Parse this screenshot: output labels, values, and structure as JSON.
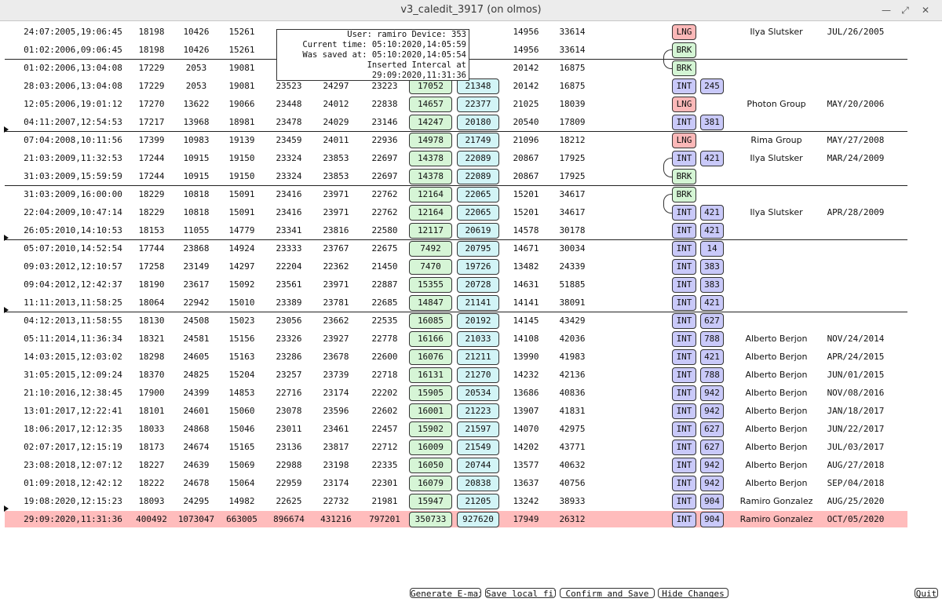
{
  "window": {
    "title": "v3_caledit_3917 (on olmos)"
  },
  "tooltip": {
    "user_line": "User: ramiro Device: 353",
    "current_time": "Current time: 05:10:2020,14:05:59",
    "saved_at": "Was saved at: 05:10:2020,14:05:54",
    "inserted": "Inserted Intercal at 29:09:2020,11:31:36"
  },
  "rows": [
    {
      "cells": [
        "24:07:2005,19:06:45",
        "18198",
        "10426",
        "15261",
        "",
        "",
        "",
        "",
        "",
        "14956",
        "33614"
      ],
      "tag": "LNG",
      "num": "",
      "name": "Ilya Slutsker",
      "date": "JUL/26/2005"
    },
    {
      "cells": [
        "01:02:2006,09:06:45",
        "18198",
        "10426",
        "15261",
        "",
        "",
        "",
        "",
        "",
        "14956",
        "33614"
      ],
      "tag": "BRK",
      "num": "",
      "name": "",
      "date": ""
    },
    {
      "cells": [
        "01:02:2006,13:04:08",
        "17229",
        "2053",
        "19081",
        "",
        "",
        "",
        "",
        "",
        "20142",
        "16875"
      ],
      "tag": "BRK",
      "num": "",
      "name": "",
      "date": ""
    },
    {
      "cells": [
        "28:03:2006,13:04:08",
        "17229",
        "2053",
        "19081",
        "23523",
        "24297",
        "23223",
        "17052",
        "21348",
        "20142",
        "16875"
      ],
      "tag": "INT",
      "num": "245",
      "name": "",
      "date": ""
    },
    {
      "cells": [
        "12:05:2006,19:01:12",
        "17270",
        "13622",
        "19066",
        "23448",
        "24012",
        "22838",
        "14657",
        "22377",
        "21025",
        "18039"
      ],
      "tag": "LNG",
      "num": "",
      "name": "Photon Group",
      "date": "MAY/20/2006"
    },
    {
      "cells": [
        "04:11:2007,12:54:53",
        "17217",
        "13968",
        "18981",
        "23478",
        "24029",
        "23146",
        "14247",
        "20180",
        "20540",
        "17809"
      ],
      "tag": "INT",
      "num": "381",
      "name": "",
      "date": ""
    },
    {
      "cells": [
        "07:04:2008,10:11:56",
        "17399",
        "10983",
        "19139",
        "23459",
        "24011",
        "22936",
        "14978",
        "21749",
        "21096",
        "18212"
      ],
      "tag": "LNG",
      "num": "",
      "name": "Rima Group",
      "date": "MAY/27/2008"
    },
    {
      "cells": [
        "21:03:2009,11:32:53",
        "17244",
        "10915",
        "19150",
        "23324",
        "23853",
        "22697",
        "14378",
        "22089",
        "20867",
        "17925"
      ],
      "tag": "INT",
      "num": "421",
      "name": "Ilya Slutsker",
      "date": "MAR/24/2009"
    },
    {
      "cells": [
        "31:03:2009,15:59:59",
        "17244",
        "10915",
        "19150",
        "23324",
        "23853",
        "22697",
        "14378",
        "22089",
        "20867",
        "17925"
      ],
      "tag": "BRK",
      "num": "",
      "name": "",
      "date": ""
    },
    {
      "cells": [
        "31:03:2009,16:00:00",
        "18229",
        "10818",
        "15091",
        "23416",
        "23971",
        "22762",
        "12164",
        "22065",
        "15201",
        "34617"
      ],
      "tag": "BRK",
      "num": "",
      "name": "",
      "date": ""
    },
    {
      "cells": [
        "22:04:2009,10:47:14",
        "18229",
        "10818",
        "15091",
        "23416",
        "23971",
        "22762",
        "12164",
        "22065",
        "15201",
        "34617"
      ],
      "tag": "INT",
      "num": "421",
      "name": "Ilya Slutsker",
      "date": "APR/28/2009"
    },
    {
      "cells": [
        "26:05:2010,14:10:53",
        "18153",
        "11055",
        "14779",
        "23341",
        "23816",
        "22580",
        "12117",
        "20619",
        "14578",
        "30178"
      ],
      "tag": "INT",
      "num": "421",
      "name": "",
      "date": ""
    },
    {
      "cells": [
        "05:07:2010,14:52:54",
        "17744",
        "23868",
        "14924",
        "23333",
        "23767",
        "22675",
        "7492",
        "20795",
        "14671",
        "30034"
      ],
      "tag": "INT",
      "num": "14",
      "name": "",
      "date": ""
    },
    {
      "cells": [
        "09:03:2012,12:10:57",
        "17258",
        "23149",
        "14297",
        "22204",
        "22362",
        "21450",
        "7470",
        "19726",
        "13482",
        "24339"
      ],
      "tag": "INT",
      "num": "383",
      "name": "",
      "date": ""
    },
    {
      "cells": [
        "09:04:2012,12:42:37",
        "18190",
        "23617",
        "15092",
        "23561",
        "23971",
        "22887",
        "15355",
        "20728",
        "14631",
        "51885"
      ],
      "tag": "INT",
      "num": "383",
      "name": "",
      "date": ""
    },
    {
      "cells": [
        "11:11:2013,11:58:25",
        "18064",
        "22942",
        "15010",
        "23389",
        "23781",
        "22685",
        "14847",
        "21141",
        "14141",
        "38091"
      ],
      "tag": "INT",
      "num": "421",
      "name": "",
      "date": ""
    },
    {
      "cells": [
        "04:12:2013,11:58:55",
        "18130",
        "24508",
        "15023",
        "23056",
        "23662",
        "22535",
        "16085",
        "20192",
        "14145",
        "43429"
      ],
      "tag": "INT",
      "num": "627",
      "name": "",
      "date": ""
    },
    {
      "cells": [
        "05:11:2014,11:36:34",
        "18321",
        "24581",
        "15156",
        "23326",
        "23927",
        "22778",
        "16166",
        "21033",
        "14108",
        "42036"
      ],
      "tag": "INT",
      "num": "788",
      "name": "Alberto Berjon",
      "date": "NOV/24/2014"
    },
    {
      "cells": [
        "14:03:2015,12:03:02",
        "18298",
        "24605",
        "15163",
        "23286",
        "23678",
        "22600",
        "16076",
        "21211",
        "13990",
        "41983"
      ],
      "tag": "INT",
      "num": "421",
      "name": "Alberto Berjon",
      "date": "APR/24/2015"
    },
    {
      "cells": [
        "31:05:2015,12:09:24",
        "18370",
        "24825",
        "15204",
        "23257",
        "23739",
        "22718",
        "16131",
        "21270",
        "14232",
        "42136"
      ],
      "tag": "INT",
      "num": "788",
      "name": "Alberto Berjon",
      "date": "JUN/01/2015"
    },
    {
      "cells": [
        "21:10:2016,12:38:45",
        "17900",
        "24399",
        "14853",
        "22716",
        "23174",
        "22202",
        "15905",
        "20534",
        "13686",
        "40836"
      ],
      "tag": "INT",
      "num": "942",
      "name": "Alberto Berjon",
      "date": "NOV/08/2016"
    },
    {
      "cells": [
        "13:01:2017,12:22:41",
        "18101",
        "24601",
        "15060",
        "23078",
        "23596",
        "22602",
        "16001",
        "21223",
        "13907",
        "41831"
      ],
      "tag": "INT",
      "num": "942",
      "name": "Alberto Berjon",
      "date": "JAN/18/2017"
    },
    {
      "cells": [
        "18:06:2017,12:12:35",
        "18033",
        "24868",
        "15046",
        "23011",
        "23461",
        "22457",
        "15902",
        "21597",
        "14070",
        "42975"
      ],
      "tag": "INT",
      "num": "627",
      "name": "Alberto Berjon",
      "date": "JUN/22/2017"
    },
    {
      "cells": [
        "02:07:2017,12:15:19",
        "18173",
        "24674",
        "15165",
        "23136",
        "23817",
        "22712",
        "16009",
        "21549",
        "14202",
        "43771"
      ],
      "tag": "INT",
      "num": "627",
      "name": "Alberto Berjon",
      "date": "JUL/03/2017"
    },
    {
      "cells": [
        "23:08:2018,12:07:12",
        "18227",
        "24639",
        "15069",
        "22988",
        "23198",
        "22335",
        "16050",
        "20744",
        "13577",
        "40632"
      ],
      "tag": "INT",
      "num": "942",
      "name": "Alberto Berjon",
      "date": "AUG/27/2018"
    },
    {
      "cells": [
        "01:09:2018,12:42:12",
        "18222",
        "24678",
        "15064",
        "22959",
        "23174",
        "22301",
        "16079",
        "20838",
        "13637",
        "40756"
      ],
      "tag": "INT",
      "num": "942",
      "name": "Alberto Berjon",
      "date": "SEP/04/2018"
    },
    {
      "cells": [
        "19:08:2020,12:15:23",
        "18093",
        "24295",
        "14982",
        "22625",
        "22732",
        "21981",
        "15947",
        "21205",
        "13242",
        "38933"
      ],
      "tag": "INT",
      "num": "904",
      "name": "Ramiro Gonzalez",
      "date": "AUG/25/2020"
    },
    {
      "cells": [
        "29:09:2020,11:31:36",
        "400492",
        "1073047",
        "663005",
        "896674",
        "431216",
        "797201",
        "350733",
        "927620",
        "17949",
        "26312"
      ],
      "tag": "INT",
      "num": "904",
      "name": "Ramiro Gonzalez",
      "date": "OCT/05/2020",
      "highlight": true
    }
  ],
  "buttons": {
    "email": "Generate E-mail",
    "save_local": "Save local file",
    "confirm": "Confirm and Save",
    "hide": "Hide Changes",
    "quit": "Quit"
  }
}
